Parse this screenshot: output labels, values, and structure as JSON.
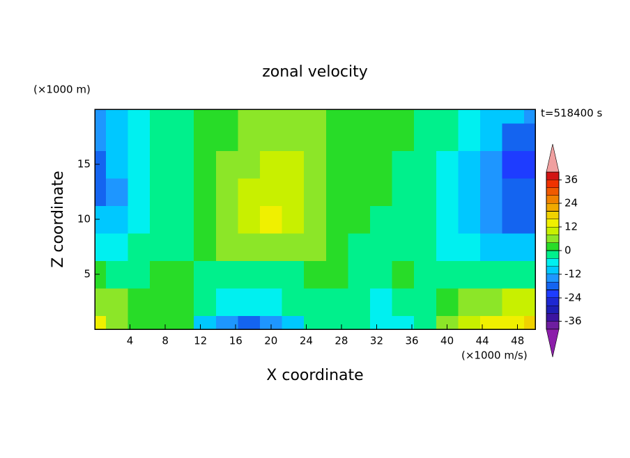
{
  "chart_data": {
    "type": "contour",
    "title": "zonal velocity",
    "y_unit": "(×1000 m)",
    "x_unit": "(×1000 m/s)",
    "time_label": "t=518400 s",
    "xlabel": "X coordinate",
    "ylabel": "Z coordinate",
    "xlim": [
      0,
      50
    ],
    "ylim": [
      0,
      20
    ],
    "xticks": [
      4,
      8,
      12,
      16,
      20,
      24,
      28,
      32,
      36,
      40,
      44,
      48
    ],
    "yticks": [
      5,
      10,
      15
    ],
    "x": [
      0,
      2.5,
      5,
      7.5,
      10,
      12.5,
      15,
      17.5,
      20,
      22.5,
      25,
      27.5,
      30,
      32.5,
      35,
      37.5,
      40,
      42.5,
      45,
      47.5,
      50
    ],
    "y": [
      0,
      2.5,
      5,
      7.5,
      10,
      12.5,
      15,
      17.5,
      20
    ],
    "values": [
      [
        14,
        6,
        2,
        2,
        2,
        -10,
        -14,
        -18,
        -14,
        -10,
        -2,
        -2,
        -2,
        -6,
        -6,
        -2,
        6,
        10,
        14,
        14,
        18
      ],
      [
        6,
        6,
        2,
        2,
        2,
        -2,
        -6,
        -6,
        -6,
        -2,
        -2,
        -2,
        -2,
        -6,
        -2,
        -2,
        2,
        6,
        6,
        10,
        10
      ],
      [
        2,
        -2,
        -2,
        2,
        2,
        -2,
        -2,
        -2,
        -2,
        -2,
        2,
        2,
        -2,
        -2,
        2,
        -2,
        -2,
        -2,
        -2,
        -2,
        -2
      ],
      [
        -6,
        -6,
        -4,
        -2,
        -2,
        2,
        6,
        6,
        6,
        6,
        4,
        2,
        -2,
        -2,
        -2,
        -4,
        -6,
        -8,
        -10,
        -12,
        -12
      ],
      [
        -12,
        -10,
        -6,
        -2,
        -2,
        2,
        6,
        10,
        12,
        10,
        6,
        2,
        2,
        -2,
        -2,
        -4,
        -8,
        -10,
        -14,
        -18,
        -18
      ],
      [
        -18,
        -14,
        -8,
        -4,
        -2,
        2,
        6,
        10,
        10,
        8,
        6,
        2,
        2,
        2,
        -2,
        -4,
        -8,
        -12,
        -16,
        -20,
        -20
      ],
      [
        -18,
        -12,
        -8,
        -4,
        -2,
        2,
        4,
        6,
        8,
        8,
        6,
        2,
        2,
        2,
        -2,
        -2,
        -6,
        -12,
        -16,
        -22,
        -22
      ],
      [
        -14,
        -12,
        -6,
        -4,
        -2,
        2,
        2,
        6,
        6,
        6,
        4,
        2,
        2,
        2,
        2,
        -2,
        -4,
        -8,
        -12,
        -18,
        -18
      ],
      [
        -14,
        -10,
        -6,
        -4,
        -2,
        2,
        2,
        4,
        6,
        6,
        4,
        2,
        2,
        2,
        2,
        -2,
        -2,
        -6,
        -10,
        -12,
        -14
      ]
    ],
    "levels": [
      -40,
      -36,
      -32,
      -28,
      -24,
      -20,
      -16,
      -12,
      -8,
      -4,
      0,
      4,
      8,
      12,
      16,
      20,
      24,
      28,
      32,
      36,
      40
    ],
    "colors": [
      "#6e1ea0",
      "#3c14a0",
      "#1e1eb4",
      "#1e28d2",
      "#1e3cff",
      "#1464f0",
      "#1e96ff",
      "#00c8ff",
      "#00f0f0",
      "#00f08c",
      "#28dc28",
      "#8ce628",
      "#c8f000",
      "#f0f000",
      "#f0d200",
      "#f0aa00",
      "#f08200",
      "#f05a00",
      "#f03200",
      "#d21414"
    ],
    "over_color": "#f0a0a0",
    "under_color": "#8c1eaa",
    "colorbar_ticks": [
      -36,
      -24,
      -12,
      0,
      12,
      24,
      36
    ]
  }
}
